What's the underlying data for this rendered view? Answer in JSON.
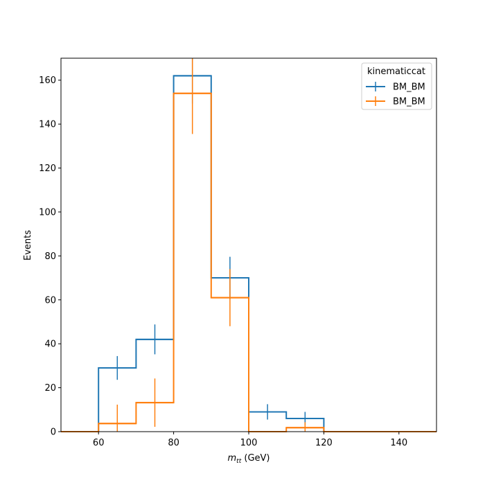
{
  "chart_data": {
    "type": "histogram",
    "xlabel_main": "m",
    "xlabel_sub": "tt",
    "xlabel_unit": " (GeV)",
    "ylabel": "Events",
    "xlim": [
      50,
      150
    ],
    "ylim": [
      0,
      170
    ],
    "xticks": [
      60,
      80,
      100,
      120,
      140
    ],
    "yticks": [
      0,
      20,
      40,
      60,
      80,
      100,
      120,
      140,
      160
    ],
    "bin_edges": [
      50,
      60,
      70,
      80,
      90,
      100,
      110,
      120,
      130,
      140,
      150
    ],
    "series": [
      {
        "name": "BM_BM",
        "color": "#1f77b4",
        "values": [
          0,
          29,
          42,
          162,
          70,
          9,
          6,
          0,
          0,
          0
        ],
        "errors": [
          0,
          5.4,
          6.8,
          12.7,
          9.6,
          3.5,
          3.0,
          0,
          0,
          0
        ]
      },
      {
        "name": "BM_BM",
        "color": "#ff7f0e",
        "values": [
          0,
          3.7,
          13.2,
          154,
          61,
          0,
          1.8,
          0,
          0,
          0
        ],
        "errors": [
          0,
          8.6,
          11.0,
          18.5,
          13.0,
          0,
          2.5,
          0,
          0,
          0
        ]
      }
    ],
    "legend": {
      "title": "kinematiccat",
      "position": "upper right"
    }
  }
}
